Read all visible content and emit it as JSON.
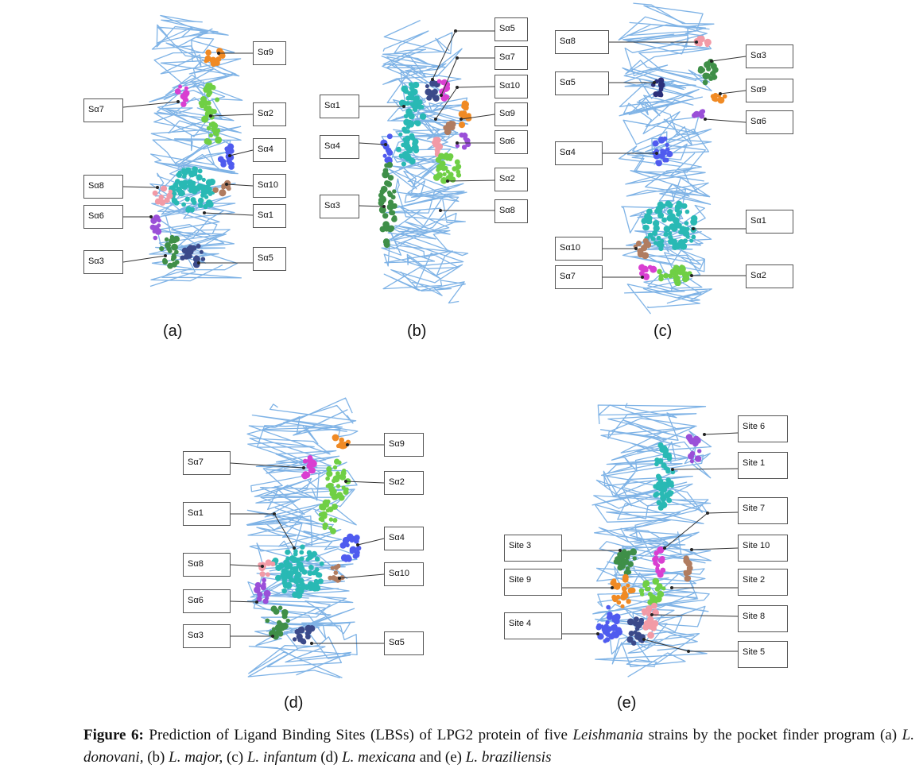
{
  "panels": [
    {
      "id": "a",
      "label": "(a)",
      "sites": [
        "Sα9",
        "Sα7",
        "Sα2",
        "Sα4",
        "Sα8",
        "Sα10",
        "Sα6",
        "Sα1",
        "Sα3",
        "Sα5"
      ]
    },
    {
      "id": "b",
      "label": "(b)",
      "sites": [
        "Sα5",
        "Sα7",
        "Sα10",
        "Sα1",
        "Sα9",
        "Sα4",
        "Sα6",
        "Sα2",
        "Sα3",
        "Sα8"
      ]
    },
    {
      "id": "c",
      "label": "(c)",
      "sites": [
        "Sα8",
        "Sα3",
        "Sα5",
        "Sα9",
        "Sα6",
        "Sα4",
        "Sα1",
        "Sα10",
        "Sα7",
        "Sα2"
      ]
    },
    {
      "id": "d",
      "label": "(d)",
      "sites": [
        "Sα9",
        "Sα7",
        "Sα2",
        "Sα1",
        "Sα4",
        "Sα8",
        "Sα10",
        "Sα6",
        "Sα3",
        "Sα5"
      ]
    },
    {
      "id": "e",
      "label": "(e)",
      "sites": [
        "Site 6",
        "Site 1",
        "Site 7",
        "Site 3",
        "Site 10",
        "Site 9",
        "Site 2",
        "Site 8",
        "Site 4",
        "Site 5"
      ]
    }
  ],
  "caption": {
    "figure": "Figure 6:",
    "t1": " Prediction of Ligand Binding Sites (LBSs) of LPG2 protein of five ",
    "genus": "Leishmania",
    "t2": " strains by the pocket finder program (a) ",
    "s1": "L. donovani,",
    "t3": " (b) ",
    "s2": "L. major,",
    "t4": " (c) ",
    "s3": "L. infantum",
    "t5": " (d) ",
    "s4": "L. mexicana",
    "t6": " and (e) ",
    "s5": "L. braziliensis"
  },
  "colors": {
    "backbone": "#7fb3e6",
    "orange": "#f08a24",
    "magenta": "#d93fd1",
    "green": "#6fcf45",
    "blue": "#4f5bef",
    "cyan": "#29b9b4",
    "brown": "#b07c60",
    "pink": "#f29aa6",
    "purple": "#9a4fd8",
    "darkgreen": "#3f8f48",
    "navy": "#3b4a8a",
    "darknavy": "#2b2f7a"
  }
}
